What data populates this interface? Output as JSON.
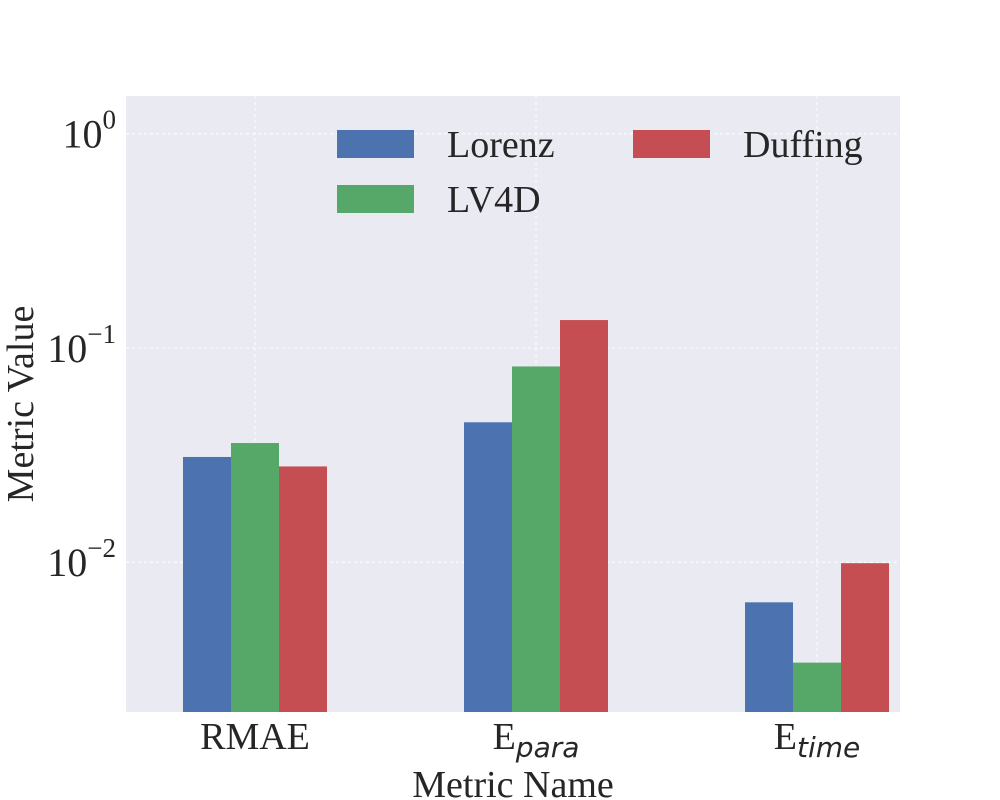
{
  "chart_data": {
    "type": "bar",
    "yscale": "log",
    "categories": [
      {
        "main": "RMAE",
        "sub": ""
      },
      {
        "main": "E",
        "sub": "para"
      },
      {
        "main": "E",
        "sub": "time"
      }
    ],
    "series": [
      {
        "name": "Lorenz",
        "color": "#4c72b0",
        "values": [
          0.031,
          0.045,
          0.0065
        ]
      },
      {
        "name": "LV4D",
        "color": "#55a868",
        "values": [
          0.036,
          0.082,
          0.0034
        ]
      },
      {
        "name": "Duffing",
        "color": "#c44e52",
        "values": [
          0.028,
          0.135,
          0.0099
        ]
      }
    ],
    "ylim": [
      0.002,
      1.5
    ],
    "yticks": [
      {
        "value": 1,
        "base": "10",
        "exp": "0"
      },
      {
        "value": 0.1,
        "base": "10",
        "exp": "−1"
      },
      {
        "value": 0.01,
        "base": "10",
        "exp": "−2"
      }
    ],
    "xlabel": "Metric Name",
    "ylabel": "Metric Value",
    "legend_position": "top-right",
    "grid": true
  }
}
